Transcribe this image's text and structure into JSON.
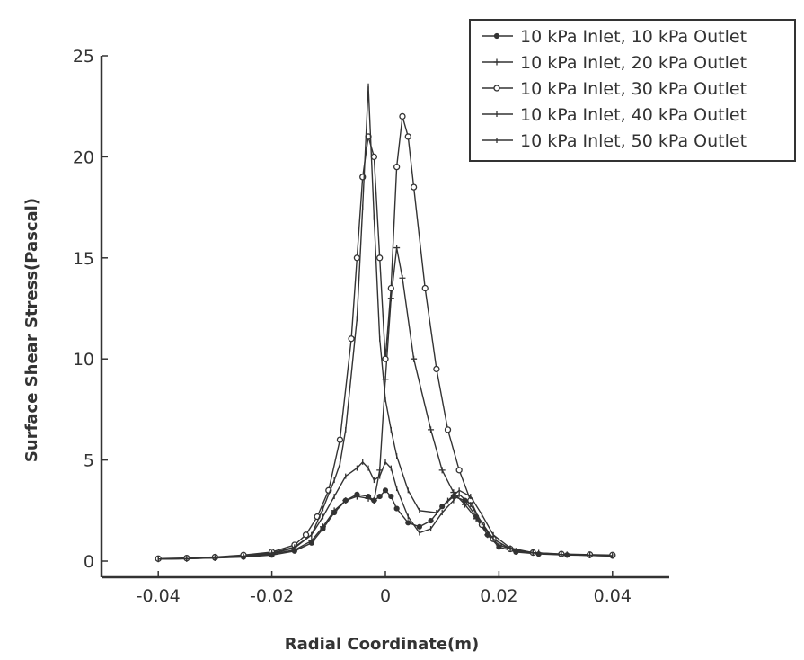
{
  "chart_data": {
    "type": "line",
    "title": "",
    "xlabel": "Radial Coordinate(m)",
    "ylabel": "Surface Shear Stress(Pascal)",
    "xlim": [
      -0.05,
      0.05
    ],
    "ylim": [
      -0.8,
      25
    ],
    "x_ticks": [
      -0.04,
      -0.02,
      0,
      0.02,
      0.04
    ],
    "x_tick_labels": [
      "-0.04",
      "-0.02",
      "0",
      "0.02",
      "0.04"
    ],
    "y_ticks": [
      0,
      5,
      10,
      15,
      20,
      25
    ],
    "y_tick_labels": [
      "0",
      "5",
      "10",
      "15",
      "20",
      "25"
    ],
    "grid": false,
    "legend_position": "top-right",
    "line_color": "#333333",
    "series": [
      {
        "name": "10 kPa Inlet, 10 kPa Outlet",
        "marker": "filled-circle",
        "points": [
          [
            -0.04,
            0.1
          ],
          [
            -0.035,
            0.12
          ],
          [
            -0.03,
            0.15
          ],
          [
            -0.025,
            0.2
          ],
          [
            -0.02,
            0.3
          ],
          [
            -0.016,
            0.5
          ],
          [
            -0.013,
            0.9
          ],
          [
            -0.011,
            1.6
          ],
          [
            -0.009,
            2.4
          ],
          [
            -0.007,
            3.0
          ],
          [
            -0.005,
            3.3
          ],
          [
            -0.003,
            3.2
          ],
          [
            -0.002,
            3.0
          ],
          [
            -0.001,
            3.2
          ],
          [
            0,
            3.5
          ],
          [
            0.001,
            3.2
          ],
          [
            0.002,
            2.6
          ],
          [
            0.004,
            1.9
          ],
          [
            0.006,
            1.7
          ],
          [
            0.008,
            2.0
          ],
          [
            0.01,
            2.7
          ],
          [
            0.012,
            3.2
          ],
          [
            0.014,
            3.0
          ],
          [
            0.016,
            2.2
          ],
          [
            0.018,
            1.3
          ],
          [
            0.02,
            0.7
          ],
          [
            0.023,
            0.45
          ],
          [
            0.027,
            0.35
          ],
          [
            0.032,
            0.3
          ],
          [
            0.036,
            0.28
          ],
          [
            0.04,
            0.25
          ]
        ]
      },
      {
        "name": "10 kPa Inlet, 20 kPa Outlet",
        "marker": "plus",
        "points": [
          [
            -0.04,
            0.1
          ],
          [
            -0.035,
            0.12
          ],
          [
            -0.03,
            0.16
          ],
          [
            -0.025,
            0.22
          ],
          [
            -0.02,
            0.35
          ],
          [
            -0.016,
            0.55
          ],
          [
            -0.013,
            1.0
          ],
          [
            -0.011,
            1.7
          ],
          [
            -0.009,
            2.5
          ],
          [
            -0.007,
            3.0
          ],
          [
            -0.005,
            3.2
          ],
          [
            -0.003,
            3.1
          ],
          [
            -0.002,
            3.0
          ],
          [
            -0.001,
            4.5
          ],
          [
            0,
            9.0
          ],
          [
            0.001,
            13.0
          ],
          [
            0.002,
            15.5
          ],
          [
            0.003,
            14.0
          ],
          [
            0.005,
            10.0
          ],
          [
            0.008,
            6.5
          ],
          [
            0.01,
            4.5
          ],
          [
            0.012,
            3.4
          ],
          [
            0.014,
            2.8
          ],
          [
            0.016,
            2.1
          ],
          [
            0.018,
            1.3
          ],
          [
            0.02,
            0.8
          ],
          [
            0.023,
            0.5
          ],
          [
            0.027,
            0.4
          ],
          [
            0.032,
            0.32
          ],
          [
            0.036,
            0.29
          ],
          [
            0.04,
            0.27
          ]
        ]
      },
      {
        "name": "10 kPa Inlet, 30 kPa Outlet",
        "marker": "open-circle",
        "points": [
          [
            -0.04,
            0.12
          ],
          [
            -0.035,
            0.15
          ],
          [
            -0.03,
            0.2
          ],
          [
            -0.025,
            0.3
          ],
          [
            -0.02,
            0.45
          ],
          [
            -0.016,
            0.8
          ],
          [
            -0.014,
            1.3
          ],
          [
            -0.012,
            2.2
          ],
          [
            -0.01,
            3.5
          ],
          [
            -0.008,
            6.0
          ],
          [
            -0.006,
            11.0
          ],
          [
            -0.005,
            15.0
          ],
          [
            -0.004,
            19.0
          ],
          [
            -0.003,
            21.0
          ],
          [
            -0.002,
            20.0
          ],
          [
            -0.001,
            15.0
          ],
          [
            0,
            10.0
          ],
          [
            0.001,
            13.5
          ],
          [
            0.002,
            19.5
          ],
          [
            0.003,
            22.0
          ],
          [
            0.004,
            21.0
          ],
          [
            0.005,
            18.5
          ],
          [
            0.007,
            13.5
          ],
          [
            0.009,
            9.5
          ],
          [
            0.011,
            6.5
          ],
          [
            0.013,
            4.5
          ],
          [
            0.015,
            3.0
          ],
          [
            0.017,
            1.8
          ],
          [
            0.019,
            1.1
          ],
          [
            0.022,
            0.6
          ],
          [
            0.026,
            0.42
          ],
          [
            0.031,
            0.35
          ],
          [
            0.036,
            0.32
          ],
          [
            0.04,
            0.3
          ]
        ]
      },
      {
        "name": "10 kPa Inlet, 40 kPa Outlet",
        "marker": "tick",
        "points": [
          [
            -0.04,
            0.1
          ],
          [
            -0.035,
            0.12
          ],
          [
            -0.03,
            0.17
          ],
          [
            -0.025,
            0.25
          ],
          [
            -0.02,
            0.4
          ],
          [
            -0.016,
            0.7
          ],
          [
            -0.013,
            1.3
          ],
          [
            -0.011,
            2.2
          ],
          [
            -0.009,
            3.2
          ],
          [
            -0.007,
            4.2
          ],
          [
            -0.005,
            4.6
          ],
          [
            -0.004,
            4.9
          ],
          [
            -0.003,
            4.6
          ],
          [
            -0.002,
            4.0
          ],
          [
            -0.001,
            4.2
          ],
          [
            0,
            4.9
          ],
          [
            0.001,
            4.6
          ],
          [
            0.002,
            3.6
          ],
          [
            0.004,
            2.2
          ],
          [
            0.006,
            1.4
          ],
          [
            0.008,
            1.6
          ],
          [
            0.01,
            2.4
          ],
          [
            0.012,
            3.0
          ],
          [
            0.013,
            3.3
          ],
          [
            0.015,
            2.8
          ],
          [
            0.017,
            1.9
          ],
          [
            0.019,
            1.1
          ],
          [
            0.022,
            0.6
          ],
          [
            0.026,
            0.4
          ],
          [
            0.031,
            0.32
          ],
          [
            0.036,
            0.28
          ],
          [
            0.04,
            0.25
          ]
        ]
      },
      {
        "name": "10 kPa Inlet, 50 kPa Outlet",
        "marker": "tick",
        "points": [
          [
            -0.04,
            0.1
          ],
          [
            -0.035,
            0.12
          ],
          [
            -0.03,
            0.16
          ],
          [
            -0.025,
            0.24
          ],
          [
            -0.02,
            0.38
          ],
          [
            -0.016,
            0.65
          ],
          [
            -0.013,
            1.3
          ],
          [
            -0.011,
            2.6
          ],
          [
            -0.009,
            4.0
          ],
          [
            -0.008,
            4.8
          ],
          [
            -0.007,
            6.5
          ],
          [
            -0.005,
            12.0
          ],
          [
            -0.004,
            17.5
          ],
          [
            -0.003,
            23.5
          ],
          [
            -0.002,
            17.0
          ],
          [
            -0.001,
            11.0
          ],
          [
            0,
            8.0
          ],
          [
            0.001,
            6.5
          ],
          [
            0.002,
            5.2
          ],
          [
            0.004,
            3.5
          ],
          [
            0.006,
            2.5
          ],
          [
            0.009,
            2.4
          ],
          [
            0.011,
            3.0
          ],
          [
            0.013,
            3.5
          ],
          [
            0.015,
            3.2
          ],
          [
            0.017,
            2.3
          ],
          [
            0.019,
            1.3
          ],
          [
            0.022,
            0.65
          ],
          [
            0.026,
            0.42
          ],
          [
            0.031,
            0.33
          ],
          [
            0.036,
            0.29
          ],
          [
            0.04,
            0.27
          ]
        ]
      }
    ]
  }
}
